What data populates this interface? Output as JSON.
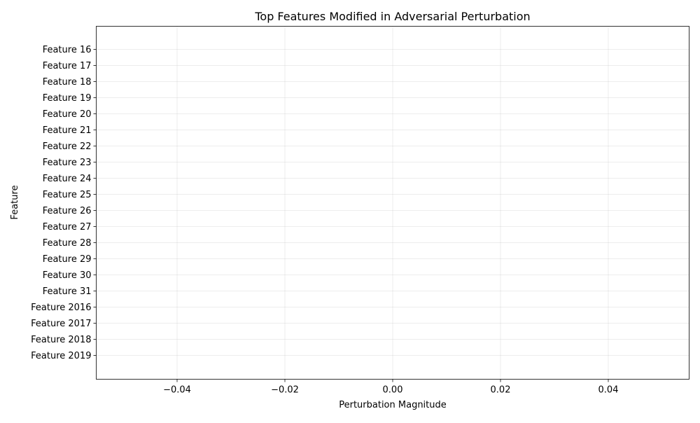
{
  "chart_data": {
    "type": "bar",
    "orientation": "horizontal",
    "title": "Top Features Modified in Adversarial Perturbation",
    "xlabel": "Perturbation Magnitude",
    "ylabel": "Feature",
    "categories": [
      "Feature 16",
      "Feature 17",
      "Feature 18",
      "Feature 19",
      "Feature 20",
      "Feature 21",
      "Feature 22",
      "Feature 23",
      "Feature 24",
      "Feature 25",
      "Feature 26",
      "Feature 27",
      "Feature 28",
      "Feature 29",
      "Feature 30",
      "Feature 31",
      "Feature 2016",
      "Feature 2017",
      "Feature 2018",
      "Feature 2019"
    ],
    "values": [
      0,
      0,
      0,
      0,
      0,
      0,
      0,
      0,
      0,
      0,
      0,
      0,
      0,
      0,
      0,
      0,
      0,
      0,
      0,
      0
    ],
    "xlim": [
      -0.055,
      0.055
    ],
    "xticks": [
      -0.04,
      -0.02,
      0.0,
      0.02,
      0.04
    ],
    "xtick_labels": [
      "−0.04",
      "−0.02",
      "0.00",
      "0.02",
      "0.04"
    ],
    "grid": true,
    "bar_color": "#1f77b4"
  }
}
